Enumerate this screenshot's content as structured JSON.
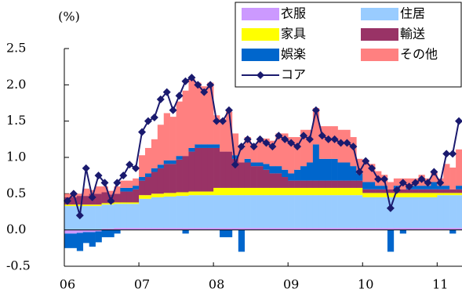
{
  "chart_data": {
    "type": "bar",
    "y_label": "(%)",
    "ylim": [
      -0.5,
      2.5
    ],
    "yticks": [
      {
        "value": -0.5,
        "label": "-0.5"
      },
      {
        "value": 0,
        "label": "0.0"
      },
      {
        "value": 0.5,
        "label": "0.5"
      },
      {
        "value": 1,
        "label": "1.0"
      },
      {
        "value": 1.5,
        "label": "1.5"
      },
      {
        "value": 2,
        "label": "2.0"
      },
      {
        "value": 2.5,
        "label": "2.5"
      }
    ],
    "categories": [
      "06",
      null,
      null,
      null,
      null,
      null,
      null,
      null,
      null,
      null,
      null,
      null,
      "07",
      null,
      null,
      null,
      null,
      null,
      null,
      null,
      null,
      null,
      null,
      null,
      "08",
      null,
      null,
      null,
      null,
      null,
      null,
      null,
      null,
      null,
      null,
      null,
      "09",
      null,
      null,
      null,
      null,
      null,
      null,
      null,
      null,
      null,
      null,
      null,
      "10",
      null,
      null,
      null,
      null,
      null,
      null,
      null,
      null,
      null,
      null,
      null,
      "11",
      null,
      null,
      null
    ],
    "series": [
      {
        "name": "衣服",
        "color": "#cc99ff",
        "values": [
          -0.05,
          -0.05,
          -0.04,
          -0.03,
          -0.03,
          -0.02,
          0.02,
          0.02,
          0.03,
          0.03,
          0.03,
          0.03,
          0.03,
          0.03,
          0.03,
          0.03,
          0.03,
          0.03,
          0.03,
          0.03,
          0.03,
          0.03,
          0.03,
          0.03,
          0.03,
          0.03,
          0.03,
          0.03,
          0.03,
          0.03,
          0.03,
          0.03,
          0.03,
          0.03,
          0.03,
          0.03,
          0.03,
          0.03,
          0.03,
          0.03,
          0.03,
          0.03,
          0.03,
          0.03,
          0.03,
          0.03,
          0.03,
          0.03,
          0.03,
          0.03,
          0.03,
          0.03,
          0.03,
          0.03,
          0.03,
          0.03,
          0.03,
          0.03,
          0.03,
          0.03,
          0.03,
          0.03,
          0.03,
          0.03
        ]
      },
      {
        "name": "住居",
        "color": "#99ccff",
        "values": [
          0.33,
          0.33,
          0.33,
          0.33,
          0.33,
          0.33,
          0.33,
          0.33,
          0.33,
          0.33,
          0.33,
          0.33,
          0.4,
          0.4,
          0.42,
          0.42,
          0.43,
          0.43,
          0.44,
          0.44,
          0.45,
          0.45,
          0.45,
          0.45,
          0.45,
          0.45,
          0.45,
          0.45,
          0.45,
          0.45,
          0.45,
          0.45,
          0.45,
          0.45,
          0.45,
          0.45,
          0.45,
          0.45,
          0.45,
          0.45,
          0.45,
          0.45,
          0.45,
          0.45,
          0.45,
          0.45,
          0.45,
          0.45,
          0.42,
          0.42,
          0.42,
          0.42,
          0.42,
          0.42,
          0.42,
          0.42,
          0.42,
          0.42,
          0.42,
          0.42,
          0.45,
          0.45,
          0.45,
          0.45
        ]
      },
      {
        "name": "家具",
        "color": "#ffff00",
        "values": [
          0.02,
          0.02,
          0.02,
          0.02,
          0.02,
          0.02,
          0.02,
          0.02,
          0.02,
          0.02,
          0.02,
          0.02,
          0.05,
          0.05,
          0.05,
          0.05,
          0.05,
          0.05,
          0.05,
          0.05,
          0.05,
          0.05,
          0.05,
          0.05,
          0.1,
          0.1,
          0.1,
          0.1,
          0.1,
          0.1,
          0.1,
          0.1,
          0.1,
          0.1,
          0.1,
          0.1,
          0.1,
          0.1,
          0.1,
          0.1,
          0.1,
          0.1,
          0.1,
          0.1,
          0.1,
          0.1,
          0.1,
          0.1,
          0.06,
          0.06,
          0.06,
          0.06,
          0.06,
          0.06,
          0.06,
          0.06,
          0.06,
          0.06,
          0.06,
          0.06,
          0.03,
          0.03,
          0.03,
          0.03
        ]
      },
      {
        "name": "輸送",
        "color": "#993366",
        "values": [
          0.1,
          0.1,
          0.12,
          0.12,
          0.15,
          0.15,
          0.15,
          0.12,
          0.12,
          0.15,
          0.15,
          0.18,
          0.2,
          0.25,
          0.3,
          0.35,
          0.4,
          0.4,
          0.45,
          0.5,
          0.55,
          0.6,
          0.6,
          0.6,
          0.55,
          0.5,
          0.5,
          0.4,
          0.35,
          0.35,
          0.3,
          0.3,
          0.25,
          0.2,
          0.2,
          0.15,
          0.1,
          0.1,
          0.1,
          0.1,
          0.1,
          0.1,
          0.1,
          0.1,
          0.1,
          0.1,
          0.1,
          0.1,
          0.05,
          0.05,
          0.05,
          0.05,
          0.05,
          0.05,
          0.05,
          0.05,
          0.05,
          0.05,
          0.05,
          0.05,
          0.05,
          0.05,
          0.05,
          0.05
        ]
      },
      {
        "name": "娯楽",
        "color": "#0066cc",
        "values": [
          -0.2,
          -0.2,
          -0.25,
          -0.15,
          -0.2,
          -0.15,
          -0.1,
          -0.1,
          -0.05,
          0.05,
          0.05,
          0.05,
          0.05,
          0.05,
          0.05,
          0.05,
          0.05,
          0.05,
          0.05,
          -0.05,
          0.05,
          0.05,
          0.05,
          0.05,
          0.05,
          -0.1,
          -0.1,
          0.05,
          -0.3,
          0.05,
          0.05,
          0.05,
          0.08,
          0.1,
          0.1,
          0.1,
          0.1,
          0.15,
          0.2,
          0.25,
          0.5,
          0.3,
          0.3,
          0.3,
          0.25,
          0.25,
          0.2,
          0.1,
          0.1,
          0.1,
          0.05,
          0.05,
          -0.3,
          0.05,
          -0.05,
          0.05,
          0.05,
          0.05,
          0.05,
          0.1,
          0.05,
          0.05,
          -0.05,
          0.05
        ]
      },
      {
        "name": "その他",
        "color": "#ff8080",
        "values": [
          0.05,
          0.05,
          0.03,
          0.1,
          0.05,
          0.1,
          0.08,
          0.05,
          0.1,
          0.1,
          0.1,
          0.1,
          0.3,
          0.35,
          0.4,
          0.55,
          0.65,
          0.6,
          0.75,
          0.9,
          0.95,
          0.85,
          0.8,
          0.85,
          0.4,
          0.45,
          0.55,
          0.3,
          0.2,
          0.3,
          0.25,
          0.3,
          0.35,
          0.35,
          0.45,
          0.5,
          0.5,
          0.45,
          0.5,
          0.45,
          0.5,
          0.45,
          0.45,
          0.45,
          0.45,
          0.45,
          0.4,
          0.2,
          0.3,
          0.25,
          0.2,
          0.15,
          0.1,
          0.1,
          0.15,
          0.1,
          0.1,
          0.15,
          0.1,
          0.15,
          0.1,
          0.3,
          0.3,
          0.5
        ]
      },
      {
        "name": "コア",
        "color": "#1a1a6e",
        "type": "line",
        "values": [
          0.4,
          0.5,
          0.2,
          0.85,
          0.45,
          0.75,
          0.65,
          0.4,
          0.65,
          0.75,
          0.9,
          0.85,
          1.35,
          1.5,
          1.55,
          1.8,
          1.9,
          1.65,
          1.85,
          2.05,
          2.1,
          2.0,
          1.9,
          2.0,
          1.5,
          1.5,
          1.65,
          0.9,
          1.15,
          1.25,
          1.15,
          1.25,
          1.2,
          1.15,
          1.3,
          1.25,
          1.2,
          1.15,
          1.3,
          1.25,
          1.65,
          1.3,
          1.25,
          1.25,
          1.2,
          1.2,
          1.15,
          0.8,
          0.95,
          0.85,
          0.7,
          0.7,
          0.3,
          0.55,
          0.65,
          0.6,
          0.65,
          0.7,
          0.65,
          0.8,
          0.65,
          1.05,
          1.05,
          1.5
        ]
      }
    ]
  }
}
